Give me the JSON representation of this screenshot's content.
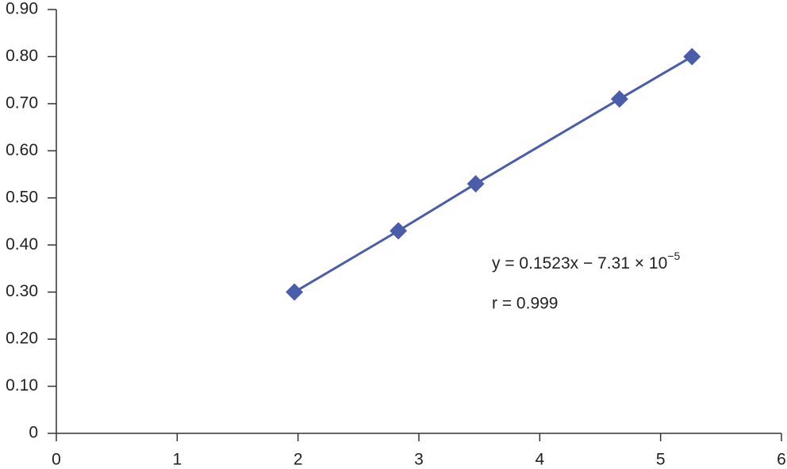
{
  "chart_data": {
    "type": "scatter",
    "line": true,
    "marker": "diamond",
    "color": "#4a5daa",
    "x": [
      1.97,
      2.83,
      3.47,
      4.66,
      5.26
    ],
    "values": [
      0.3,
      0.43,
      0.53,
      0.71,
      0.8
    ],
    "xlim": [
      0,
      6
    ],
    "xticks": [
      0,
      1,
      2,
      3,
      4,
      5,
      6
    ],
    "ylim": [
      0,
      0.9
    ],
    "yticks": [
      0,
      {
        "value": 0.1,
        "label": "0.10"
      },
      {
        "value": 0.2,
        "label": "0.20"
      },
      {
        "value": 0.3,
        "label": "0.30"
      },
      {
        "value": 0.4,
        "label": "0.40"
      },
      {
        "value": 0.5,
        "label": "0.50"
      },
      {
        "value": 0.6,
        "label": "0.60"
      },
      {
        "value": 0.7,
        "label": "0.70"
      },
      {
        "value": 0.8,
        "label": "0.80"
      },
      {
        "value": 0.9,
        "label": "0.90"
      }
    ],
    "grid": false,
    "equation": {
      "text": "y = 0.1523x − 7.31 × 10",
      "superscript": "−5"
    },
    "r_annotation": "r = 0.999"
  }
}
